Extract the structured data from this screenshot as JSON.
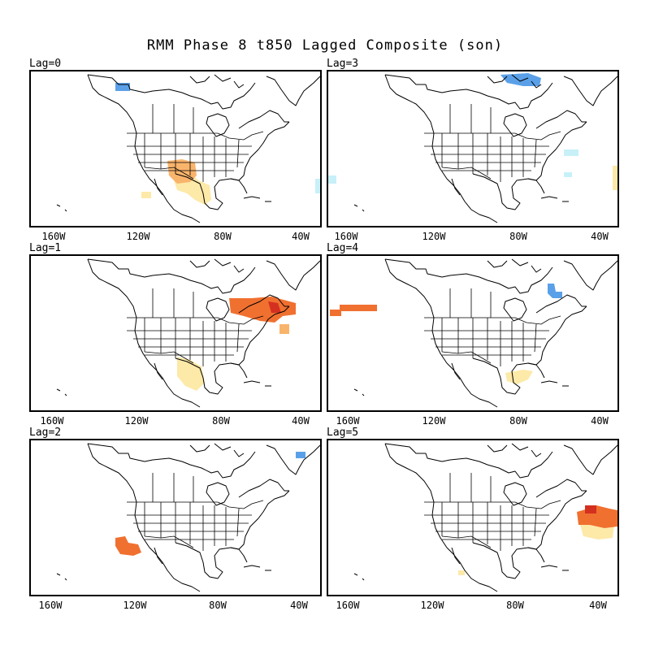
{
  "title": "RMM Phase 8 t850 Lagged Composite (son)",
  "x_tick_labels": [
    "160W",
    "120W",
    "80W",
    "40W"
  ],
  "colors": {
    "light_orange": "#fde9a8",
    "orange": "#f9b46c",
    "dark_orange": "#f07030",
    "red": "#d43020",
    "blue": "#5aa0e8",
    "light_blue": "#c8f0f8"
  },
  "panels": [
    {
      "label": "Lag=0",
      "anomalies": [
        {
          "color": "blue",
          "region": "alaska-north-coast"
        },
        {
          "color": "orange",
          "region": "texas-oklahoma"
        },
        {
          "color": "light_orange",
          "region": "gulf-of-mexico"
        },
        {
          "color": "light_orange",
          "region": "baja-california"
        },
        {
          "color": "light_blue",
          "region": "mid-atlantic"
        }
      ]
    },
    {
      "label": "Lag=3",
      "anomalies": [
        {
          "color": "blue",
          "region": "canadian-arctic-archipelago"
        },
        {
          "color": "light_blue",
          "region": "north-atlantic"
        },
        {
          "color": "light_blue",
          "region": "central-atlantic"
        },
        {
          "color": "light_blue",
          "region": "eastern-pacific"
        },
        {
          "color": "light_orange",
          "region": "eastern-atlantic"
        }
      ]
    },
    {
      "label": "Lag=1",
      "anomalies": [
        {
          "color": "dark_orange",
          "region": "quebec-labrador"
        },
        {
          "color": "red",
          "region": "labrador"
        },
        {
          "color": "orange",
          "region": "nova-scotia"
        },
        {
          "color": "light_orange",
          "region": "central-mexico"
        }
      ]
    },
    {
      "label": "Lag=4",
      "anomalies": [
        {
          "color": "dark_orange",
          "region": "gulf-of-alaska"
        },
        {
          "color": "blue",
          "region": "labrador-sea"
        },
        {
          "color": "light_orange",
          "region": "florida"
        }
      ]
    },
    {
      "label": "Lag=2",
      "anomalies": [
        {
          "color": "blue",
          "region": "greenland"
        },
        {
          "color": "dark_orange",
          "region": "baja-california"
        }
      ]
    },
    {
      "label": "Lag=5",
      "anomalies": [
        {
          "color": "dark_orange",
          "region": "central-north-atlantic"
        },
        {
          "color": "red",
          "region": "central-north-atlantic"
        },
        {
          "color": "light_orange",
          "region": "central-north-atlantic"
        },
        {
          "color": "light_orange",
          "region": "western-mexico"
        }
      ]
    }
  ]
}
